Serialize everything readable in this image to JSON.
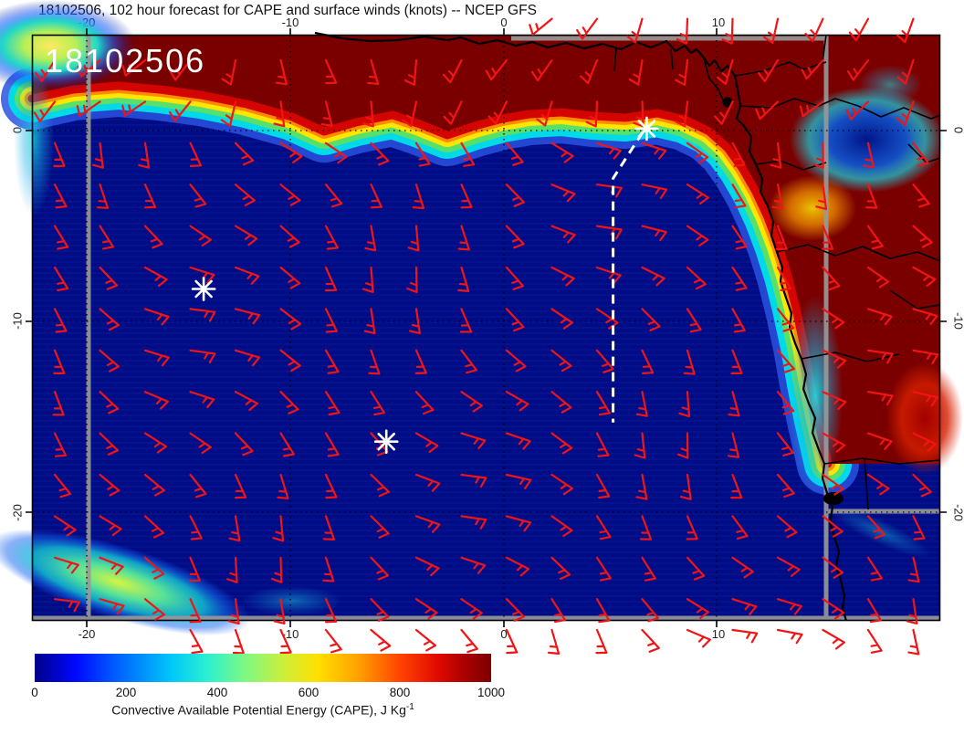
{
  "title": "18102506, 102 hour forecast for CAPE and surface winds (knots) -- NCEP GFS",
  "stamp": "18102506",
  "axes": {
    "lon_ticks": [
      "-20",
      "-10",
      "0",
      "10"
    ],
    "lat_ticks": [
      "0",
      "-10",
      "-20"
    ]
  },
  "colorbar": {
    "ticks": [
      "0",
      "200",
      "400",
      "600",
      "800",
      "1000"
    ],
    "label": "Convective Available Potential Energy (CAPE), J Kg",
    "label_exponent": "-1"
  },
  "chart_data": {
    "type": "heatmap",
    "title": "18102506, 102 hour forecast for CAPE and surface winds (knots) -- NCEP GFS",
    "model": "NCEP GFS",
    "run": "18102506",
    "forecast_hour": 102,
    "variable": "Convective Available Potential Energy (CAPE)",
    "units": "J Kg-1",
    "overlay_variable": "surface winds",
    "overlay_units": "knots",
    "lon_range": [
      -22,
      20.5
    ],
    "lat_range": [
      -26,
      5
    ],
    "lon_ticks": [
      -20,
      -10,
      0,
      10
    ],
    "lat_ticks": [
      0,
      -10,
      -20
    ],
    "colorbar_range": [
      0,
      1000
    ],
    "colorbar_ticks": [
      0,
      200,
      400,
      600,
      800,
      1000
    ],
    "field_summary": {
      "high_cape": "dark-red band (>1000 J/kg) along and north of the equator and over central African interior",
      "low_cape": "near-zero CAPE over southeastern tropical Atlantic",
      "secondary_feature": "cyan/green CAPE streak in far southwest corner"
    },
    "markers": [
      {
        "lon": 6.8,
        "lat": 0.1
      },
      {
        "lon": -14.3,
        "lat": -8.3
      },
      {
        "lon": -5.6,
        "lat": -16.3
      }
    ],
    "track": [
      [
        6.6,
        -0.1
      ],
      [
        5.2,
        -2.5
      ],
      [
        5.2,
        -15.3
      ]
    ],
    "barbs": {
      "color": "#f21414",
      "cols": 20,
      "rows": 14
    }
  }
}
